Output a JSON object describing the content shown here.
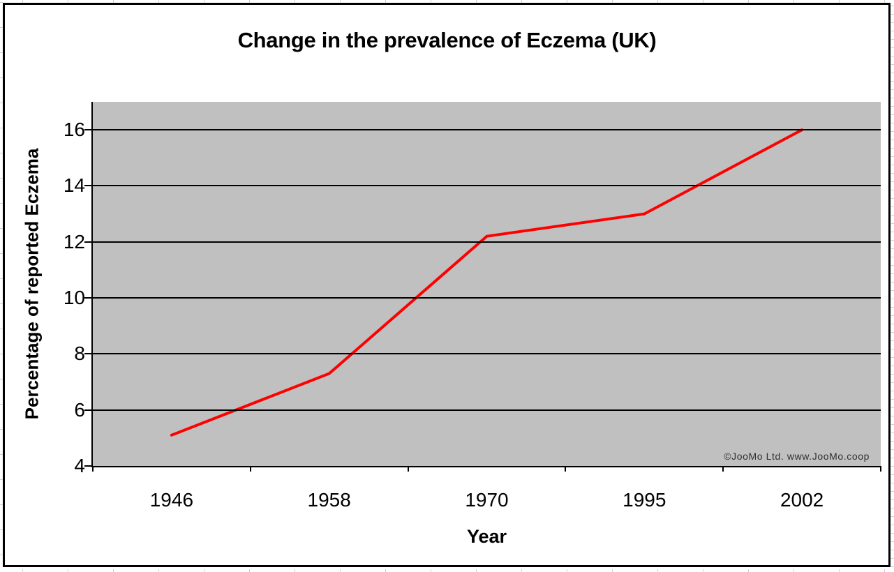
{
  "window": {
    "background_color": "#ffffff",
    "border_color": "#000000"
  },
  "chart_data": {
    "type": "line",
    "title": "Change in the prevalence of Eczema (UK)",
    "xlabel": "Year",
    "ylabel": "Percentage of reported Eczema",
    "categories": [
      "1946",
      "1958",
      "1970",
      "1995",
      "2002"
    ],
    "series": [
      {
        "values": [
          5.1,
          7.3,
          12.2,
          13,
          16
        ]
      }
    ],
    "ylim": [
      4,
      17
    ],
    "yticks": [
      4,
      6,
      8,
      10,
      12,
      14,
      16
    ],
    "grid": true,
    "legend_position": "none",
    "line_color": "#ff0000",
    "plot_bg_color": "#c0c0c0",
    "axis_color": "#000000",
    "watermark": "©JooMo Ltd. www.JooMo.coop"
  }
}
